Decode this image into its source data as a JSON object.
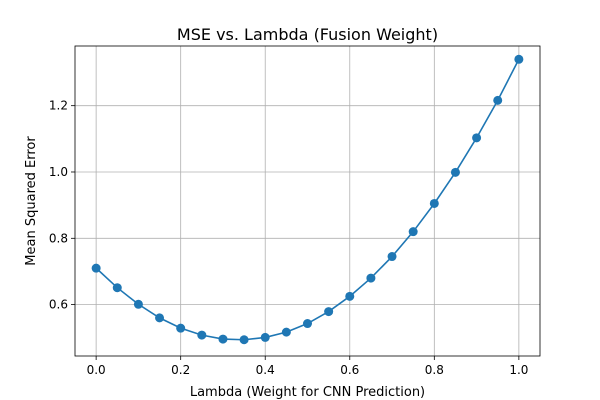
{
  "chart_data": {
    "type": "line",
    "title": "MSE vs. Lambda (Fusion Weight)",
    "xlabel": "Lambda (Weight for CNN Prediction)",
    "ylabel": "Mean Squared Error",
    "xlim": [
      -0.05,
      1.05
    ],
    "ylim": [
      0.445,
      1.38
    ],
    "xticks": [
      0.0,
      0.2,
      0.4,
      0.6,
      0.8,
      1.0
    ],
    "xtick_labels": [
      "0.0",
      "0.2",
      "0.4",
      "0.6",
      "0.8",
      "1.0"
    ],
    "yticks": [
      0.6,
      0.8,
      1.0,
      1.2
    ],
    "ytick_labels": [
      "0.6",
      "0.8",
      "1.0",
      "1.2"
    ],
    "grid": true,
    "color": "#1f77b4",
    "marker": "circle",
    "series": [
      {
        "x": [
          0.0,
          0.05,
          0.1,
          0.15,
          0.2,
          0.25,
          0.3,
          0.35,
          0.4,
          0.45,
          0.5,
          0.55,
          0.6,
          0.65,
          0.7,
          0.75,
          0.8,
          0.85,
          0.9,
          0.95,
          1.0
        ],
        "y": [
          0.71,
          0.651,
          0.601,
          0.56,
          0.529,
          0.508,
          0.496,
          0.494,
          0.501,
          0.517,
          0.543,
          0.579,
          0.625,
          0.68,
          0.745,
          0.82,
          0.905,
          0.999,
          1.103,
          1.216,
          1.34
        ]
      }
    ]
  }
}
